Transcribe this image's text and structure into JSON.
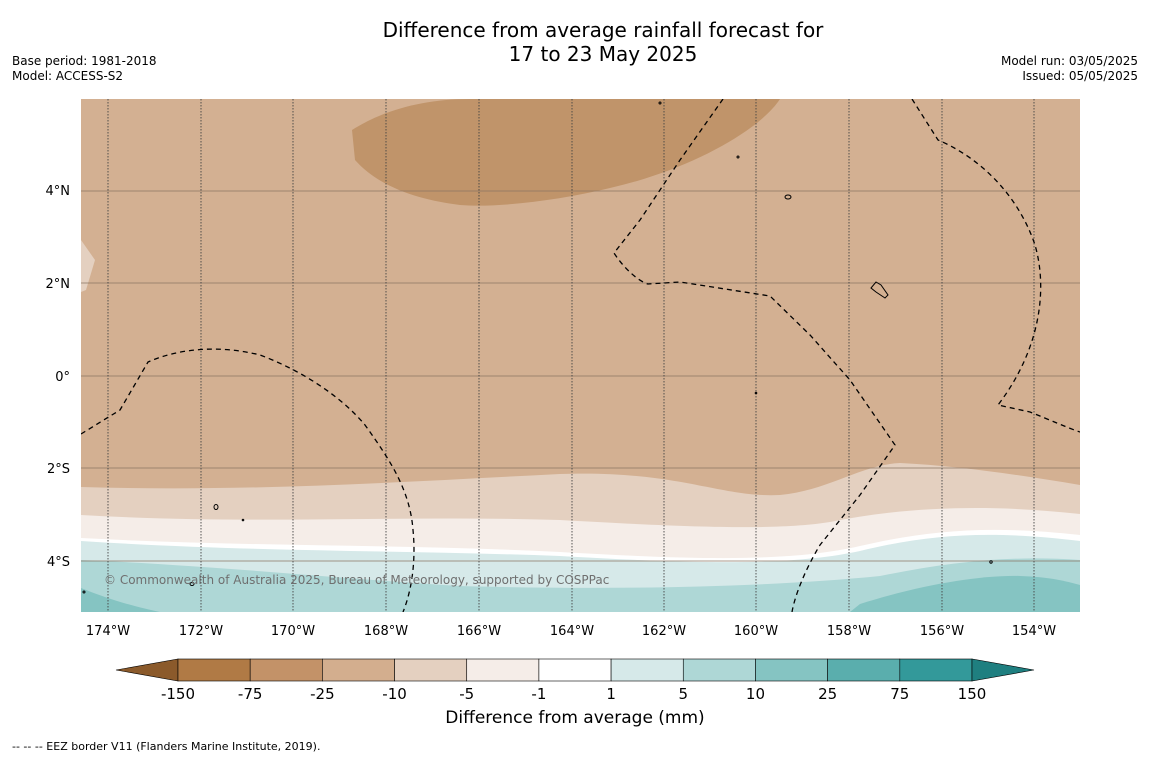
{
  "title_line1": "Difference from average rainfall forecast for",
  "title_line2": "17 to 23 May 2025",
  "meta_left": {
    "base_period": "Base period: 1981-2018",
    "model": "Model: ACCESS-S2"
  },
  "meta_right": {
    "model_run": "Model run: 03/05/2025",
    "issued": "Issued: 05/05/2025"
  },
  "copyright": "© Commonwealth of Australia 2025, Bureau of Meteorology, supported by COSPPac",
  "lat_labels": [
    "4°N",
    "2°N",
    "0°",
    "2°S",
    "4°S"
  ],
  "lon_labels": [
    "174°W",
    "172°W",
    "170°W",
    "168°W",
    "166°W",
    "164°W",
    "162°W",
    "160°W",
    "158°W",
    "156°W",
    "154°W"
  ],
  "colorbar": {
    "ticks": [
      "-150",
      "-75",
      "-25",
      "-10",
      "-5",
      "-1",
      "1",
      "5",
      "10",
      "25",
      "75",
      "150"
    ],
    "colors": [
      "#8b5a2b",
      "#b07a45",
      "#c39268",
      "#d3ae8e",
      "#e4d0c0",
      "#f5ede8",
      "#ffffff",
      "#d6e9e9",
      "#aed7d6",
      "#85c4c2",
      "#5aaead",
      "#33999a",
      "#1f7f80"
    ],
    "title": "Difference from average (mm)"
  },
  "footer": "--  --  -- EEZ border V11 (Flanders Marine Institute, 2019)."
}
